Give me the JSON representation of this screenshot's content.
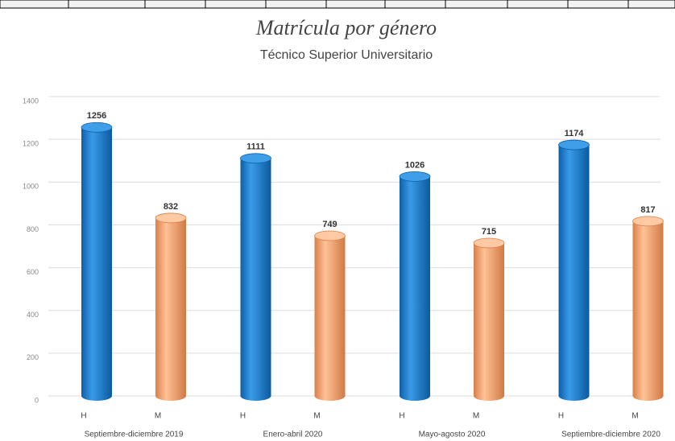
{
  "chart_data": {
    "type": "bar",
    "title": "Matrícula por género",
    "subtitle": "Técnico Superior Universitario",
    "categories": [
      "Septiembre-diciembre 2019",
      "Enero-abril 2020",
      "Mayo-agosto 2020",
      "Septiembre-diciembre 2020"
    ],
    "series": [
      {
        "name": "H",
        "color": "#1a7fd0",
        "values": [
          1256,
          1111,
          1026,
          1174
        ]
      },
      {
        "name": "M",
        "color": "#f4a46e",
        "values": [
          832,
          749,
          715,
          817
        ]
      }
    ],
    "ylim": [
      0,
      1400
    ],
    "yticks": [
      0,
      200,
      400,
      600,
      800,
      1000,
      1200,
      1400
    ],
    "grid": true
  }
}
